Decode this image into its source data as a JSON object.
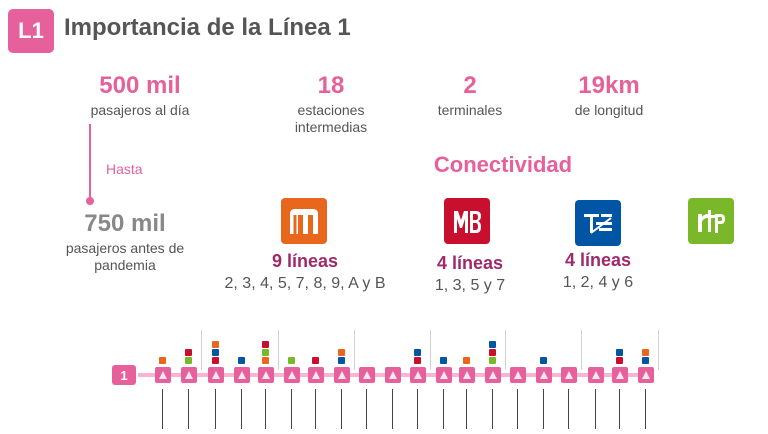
{
  "header": {
    "badge": "L1",
    "title": "Importancia de la Línea 1"
  },
  "stats": [
    {
      "value": "500 mil",
      "label": "pasajeros al día"
    },
    {
      "value": "18",
      "label": "estaciones intermedias"
    },
    {
      "value": "2",
      "label": "terminales"
    },
    {
      "value": "19km",
      "label": "de longitud"
    }
  ],
  "pre_pandemic": {
    "connector": "Hasta",
    "value": "750 mil",
    "label": "pasajeros antes de pandemia"
  },
  "connectivity": {
    "title": "Conectividad",
    "items": [
      {
        "name": "metro-logo",
        "color": "#e8671d",
        "count": "9 líneas",
        "lines": "2, 3, 4, 5, 7, 8, 9, A y B"
      },
      {
        "name": "metrobus-logo",
        "color": "#c8102e",
        "count": "4 líneas",
        "lines": "1, 3, 5 y 7"
      },
      {
        "name": "trolleybus-logo",
        "color": "#0055a5",
        "count": "4 líneas",
        "lines": "1, 2, 4 y 6"
      },
      {
        "name": "rtp-logo",
        "color": "#7ab829",
        "count": "",
        "lines": ""
      }
    ]
  },
  "line_map": {
    "badge": "1"
  },
  "colors": {
    "accent": "#e6609b",
    "muted": "#888888",
    "dark_magenta": "#a0296a"
  }
}
